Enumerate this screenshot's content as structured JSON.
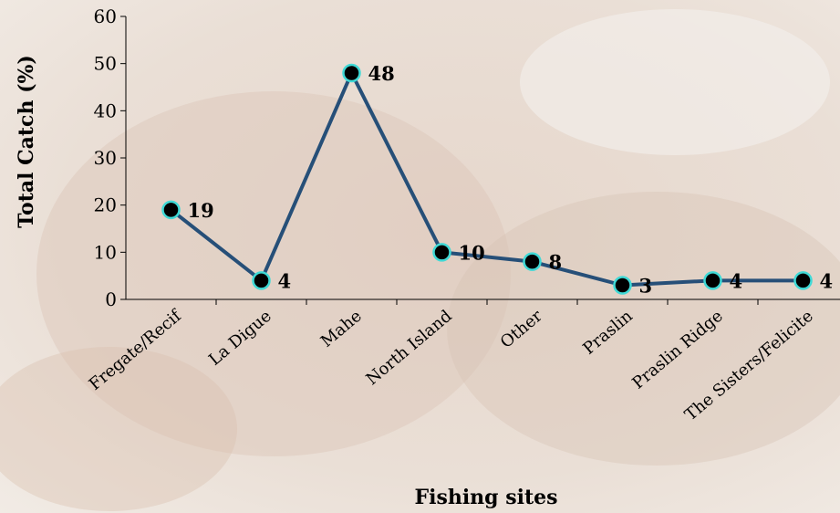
{
  "chart_data": {
    "type": "line",
    "xlabel": "Fishing sites",
    "ylabel": "Total Catch (%)",
    "categories": [
      "Fregate/Recif",
      "La Digue",
      "Mahe",
      "North Island",
      "Other",
      "Praslin",
      "Praslin Ridge",
      "The Sisters/Felicite"
    ],
    "values": [
      19,
      4,
      48,
      10,
      8,
      3,
      4,
      4
    ],
    "color": "#264f78",
    "marker_color": "#000000",
    "marker_edge_color": "#3fd9d6",
    "ylim": [
      0,
      60
    ],
    "yticks": [
      0,
      10,
      20,
      30,
      40,
      50,
      60
    ],
    "grid": false,
    "data_labels": true
  }
}
